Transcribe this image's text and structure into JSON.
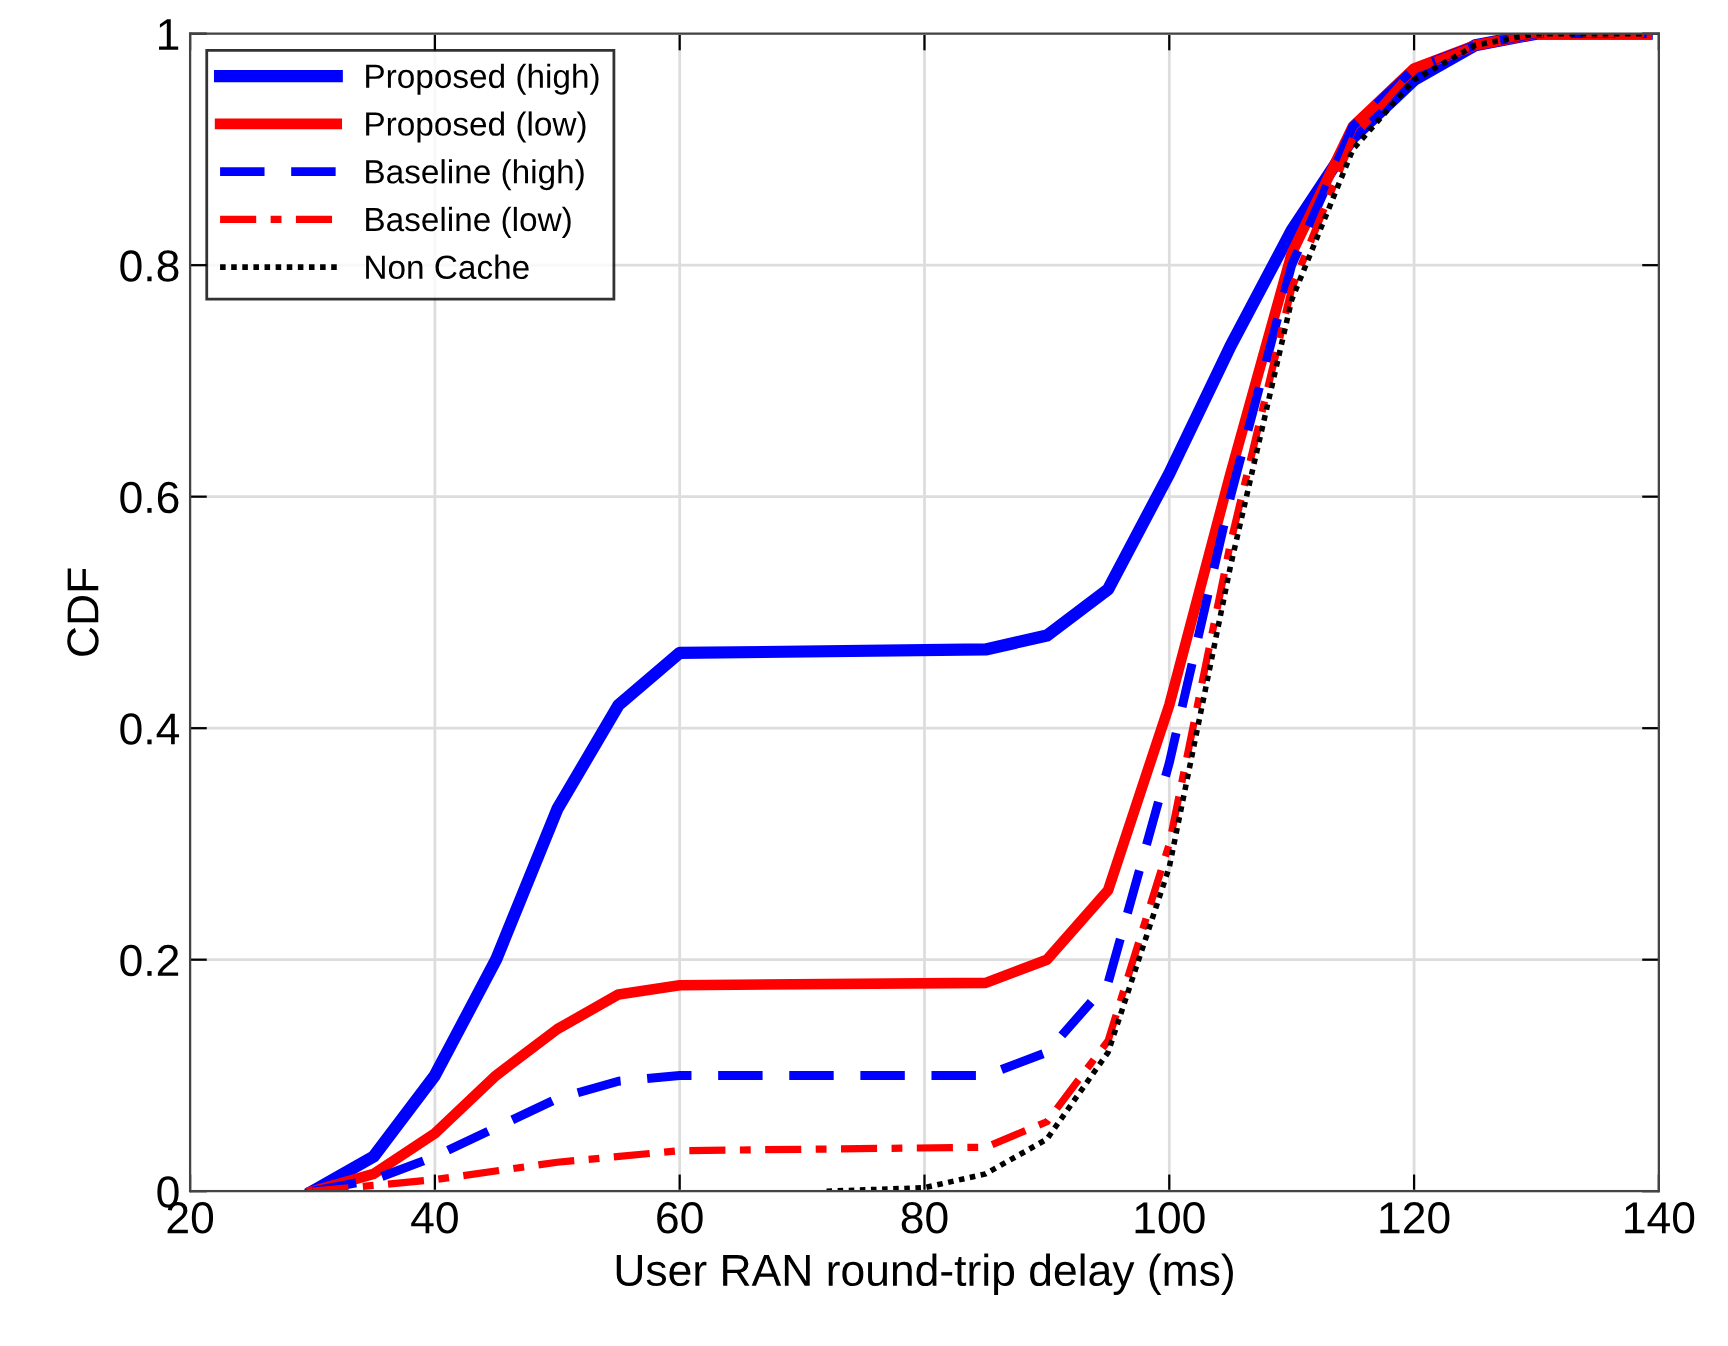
{
  "chart_data": {
    "type": "line",
    "xlabel": "User RAN round-trip delay (ms)",
    "ylabel": "CDF",
    "xlim": [
      20,
      140
    ],
    "xticks": [
      20,
      40,
      60,
      80,
      100,
      120,
      140
    ],
    "ylim": [
      0,
      1
    ],
    "yticks": [
      0,
      {
        "value": 0.2,
        "label": "0.2"
      },
      {
        "value": 0.4,
        "label": "0.4"
      },
      {
        "value": 0.6,
        "label": "0.6"
      },
      {
        "value": 0.8,
        "label": "0.8"
      },
      1
    ],
    "grid": true,
    "legend": "top left",
    "series": [
      {
        "name": "Proposed (high)",
        "color": "#0000ff",
        "line_style": "solid",
        "x": [
          30,
          35,
          40,
          45,
          50,
          55,
          60,
          85,
          90,
          95,
          100,
          105,
          110,
          115,
          120,
          125,
          130,
          139
        ],
        "values": [
          0,
          0.03,
          0.1,
          0.2,
          0.33,
          0.42,
          0.465,
          0.468,
          0.48,
          0.52,
          0.62,
          0.73,
          0.83,
          0.91,
          0.96,
          0.99,
          1.0,
          1.0
        ]
      },
      {
        "name": "Proposed (low)",
        "color": "#ff0000",
        "line_style": "solid",
        "x": [
          30,
          35,
          40,
          45,
          50,
          55,
          60,
          85,
          90,
          95,
          100,
          105,
          110,
          115,
          120,
          125,
          130,
          139
        ],
        "values": [
          0,
          0.015,
          0.05,
          0.1,
          0.14,
          0.17,
          0.178,
          0.18,
          0.2,
          0.26,
          0.42,
          0.62,
          0.81,
          0.92,
          0.97,
          0.99,
          1.0,
          1.0
        ]
      },
      {
        "name": "Baseline (high)",
        "color": "#0000ff",
        "line_style": "dashed",
        "x": [
          30,
          35,
          40,
          45,
          50,
          55,
          60,
          85,
          90,
          95,
          100,
          105,
          110,
          115,
          120,
          125,
          130,
          139
        ],
        "values": [
          0,
          0.01,
          0.03,
          0.055,
          0.08,
          0.095,
          0.1,
          0.1,
          0.12,
          0.18,
          0.37,
          0.6,
          0.8,
          0.92,
          0.97,
          0.99,
          1.0,
          1.0
        ]
      },
      {
        "name": "Baseline (low)",
        "color": "#ff0000",
        "line_style": "dashdot",
        "x": [
          30,
          40,
          50,
          60,
          85,
          90,
          95,
          100,
          105,
          110,
          115,
          120,
          125,
          130,
          139
        ],
        "values": [
          0,
          0.01,
          0.025,
          0.035,
          0.038,
          0.06,
          0.13,
          0.3,
          0.56,
          0.78,
          0.91,
          0.97,
          0.99,
          1.0,
          1.0
        ]
      },
      {
        "name": "Non Cache",
        "color": "#000000",
        "line_style": "dotted",
        "x": [
          72,
          80,
          85,
          90,
          95,
          100,
          105,
          110,
          115,
          120,
          125,
          130,
          139
        ],
        "values": [
          0,
          0.003,
          0.015,
          0.045,
          0.12,
          0.28,
          0.54,
          0.77,
          0.9,
          0.96,
          0.99,
          1.0,
          1.0
        ]
      }
    ]
  }
}
